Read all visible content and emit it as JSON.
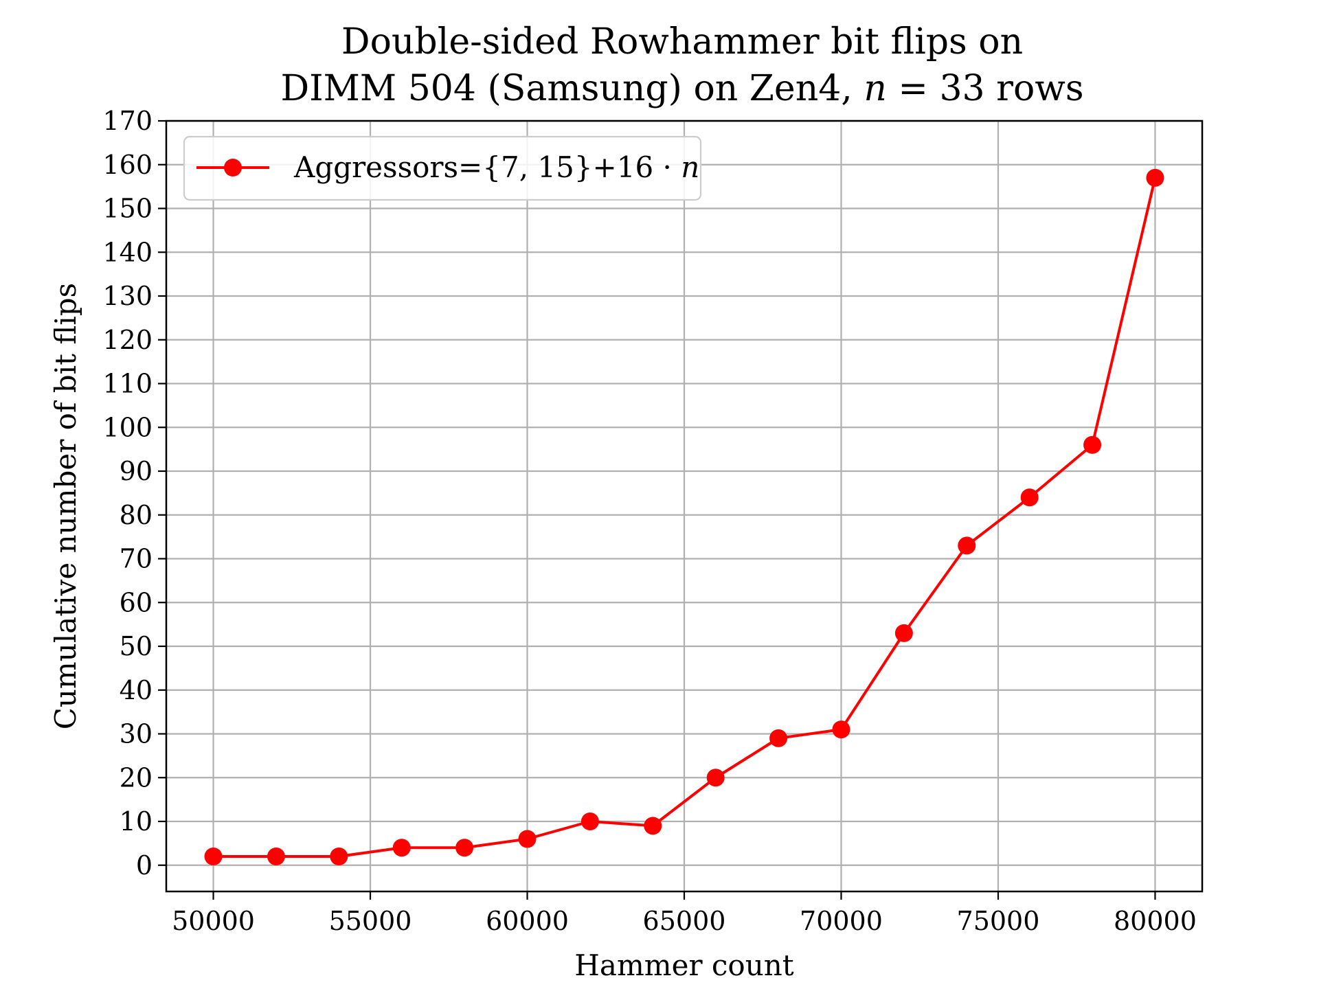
{
  "chart_data": {
    "type": "line",
    "title_line1": "Double-sided Rowhammer bit flips on",
    "title_line2_prefix": "DIMM 504 (Samsung) on Zen4, ",
    "title_line2_var": "n",
    "title_line2_suffix": " = 33 rows",
    "xlabel": "Hammer count",
    "ylabel": "Cumulative number of bit flips",
    "xlim": [
      48500,
      81500
    ],
    "ylim": [
      -6,
      170
    ],
    "xticks": [
      50000,
      55000,
      60000,
      65000,
      70000,
      75000,
      80000
    ],
    "yticks": [
      0,
      10,
      20,
      30,
      40,
      50,
      60,
      70,
      80,
      90,
      100,
      110,
      120,
      130,
      140,
      150,
      160,
      170
    ],
    "grid": true,
    "legend_position": "upper-left",
    "series": [
      {
        "name_prefix": "Aggressors={7, 15}+16 · ",
        "name_var": "n",
        "color": "#ff0000",
        "marker": "circle",
        "x": [
          50000,
          52000,
          54000,
          56000,
          58000,
          60000,
          62000,
          64000,
          66000,
          68000,
          70000,
          72000,
          74000,
          76000,
          78000,
          80000
        ],
        "y": [
          2,
          2,
          2,
          4,
          4,
          6,
          10,
          9,
          20,
          29,
          31,
          53,
          73,
          84,
          96,
          157
        ]
      }
    ]
  }
}
